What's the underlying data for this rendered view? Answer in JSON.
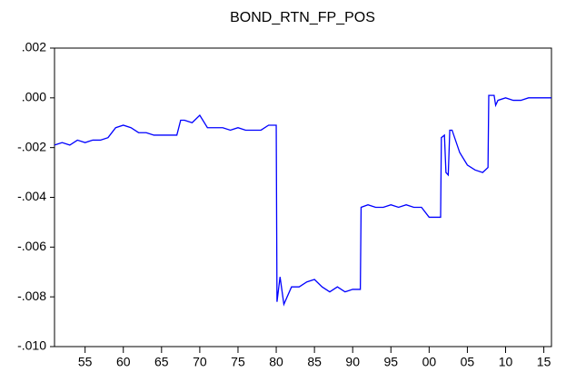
{
  "chart_data": {
    "type": "line",
    "title": "BOND_RTN_FP_POS",
    "color": "#0000ff",
    "x": [
      1951,
      1952,
      1953,
      1954,
      1955,
      1956,
      1957,
      1958,
      1959,
      1960,
      1961,
      1962,
      1963,
      1964,
      1965,
      1966,
      1967,
      1967.5,
      1968,
      1969,
      1970,
      1971,
      1972,
      1973,
      1974,
      1975,
      1976,
      1977,
      1978,
      1979,
      1980,
      1980.1,
      1980.5,
      1981,
      1982,
      1983,
      1984,
      1985,
      1986,
      1987,
      1988,
      1989,
      1990,
      1991,
      1991.1,
      1992,
      1993,
      1994,
      1995,
      1996,
      1997,
      1998,
      1999,
      2000,
      2001,
      2001.5,
      2001.6,
      2002,
      2002.2,
      2002.5,
      2002.7,
      2003,
      2004,
      2005,
      2006,
      2007,
      2007.7,
      2007.8,
      2008.5,
      2008.7,
      2009,
      2010,
      2011,
      2012,
      2013,
      2016
    ],
    "values": [
      -0.0019,
      -0.0018,
      -0.0019,
      -0.0017,
      -0.0018,
      -0.0017,
      -0.0017,
      -0.0016,
      -0.0012,
      -0.0011,
      -0.0012,
      -0.0014,
      -0.0014,
      -0.0015,
      -0.0015,
      -0.0015,
      -0.0015,
      -0.0009,
      -0.0009,
      -0.001,
      -0.0007,
      -0.0012,
      -0.0012,
      -0.0012,
      -0.0013,
      -0.0012,
      -0.0013,
      -0.0013,
      -0.0013,
      -0.0011,
      -0.0011,
      -0.0082,
      -0.0072,
      -0.0083,
      -0.0076,
      -0.0076,
      -0.0074,
      -0.0073,
      -0.0076,
      -0.0078,
      -0.0076,
      -0.0078,
      -0.0077,
      -0.0077,
      -0.0044,
      -0.0043,
      -0.0044,
      -0.0044,
      -0.0043,
      -0.0044,
      -0.0043,
      -0.0044,
      -0.0044,
      -0.0048,
      -0.0048,
      -0.0048,
      -0.0016,
      -0.0015,
      -0.003,
      -0.0031,
      -0.0013,
      -0.0013,
      -0.0022,
      -0.0027,
      -0.0029,
      -0.003,
      -0.0028,
      0.0001,
      0.0001,
      -0.0003,
      -0.0001,
      0,
      -0.0001,
      -0.0001,
      0,
      0
    ],
    "xlim": [
      1951,
      2016
    ],
    "xticks": [
      {
        "value": 1955,
        "label": "55"
      },
      {
        "value": 1960,
        "label": "60"
      },
      {
        "value": 1965,
        "label": "65"
      },
      {
        "value": 1970,
        "label": "70"
      },
      {
        "value": 1975,
        "label": "75"
      },
      {
        "value": 1980,
        "label": "80"
      },
      {
        "value": 1985,
        "label": "85"
      },
      {
        "value": 1990,
        "label": "90"
      },
      {
        "value": 1995,
        "label": "95"
      },
      {
        "value": 2000,
        "label": "00"
      },
      {
        "value": 2005,
        "label": "05"
      },
      {
        "value": 2010,
        "label": "10"
      },
      {
        "value": 2015,
        "label": "15"
      }
    ],
    "ylim": [
      -0.01,
      0.002
    ],
    "yticks": [
      {
        "value": 0.002,
        "label": ".002"
      },
      {
        "value": 0,
        "label": ".000"
      },
      {
        "value": -0.002,
        "label": "-.002"
      },
      {
        "value": -0.004,
        "label": "-.004"
      },
      {
        "value": -0.006,
        "label": "-.006"
      },
      {
        "value": -0.008,
        "label": "-.008"
      },
      {
        "value": -0.01,
        "label": "-.010"
      }
    ]
  }
}
